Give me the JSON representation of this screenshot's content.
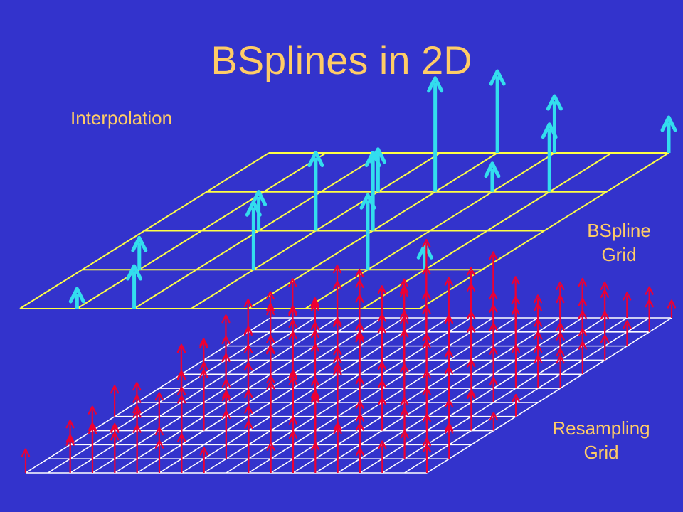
{
  "slide": {
    "title": "BSplines in 2D",
    "subtitle": "Interpolation",
    "bspline_label": {
      "line1": "BSpline",
      "line2": "Grid"
    },
    "resampling_label": {
      "line1": "Resampling",
      "line2": "Grid"
    }
  },
  "colors": {
    "background": "#3333cc",
    "text": "#ffcc66",
    "bspline_grid": "#ffff44",
    "bspline_arrows": "#33ddee",
    "resampling_grid": "#ffffff",
    "resampling_arrows": "#ee0033"
  },
  "bspline_grid": {
    "columns": 7,
    "rows": 4
  },
  "resampling_grid": {
    "columns": 18,
    "rows": 11
  }
}
